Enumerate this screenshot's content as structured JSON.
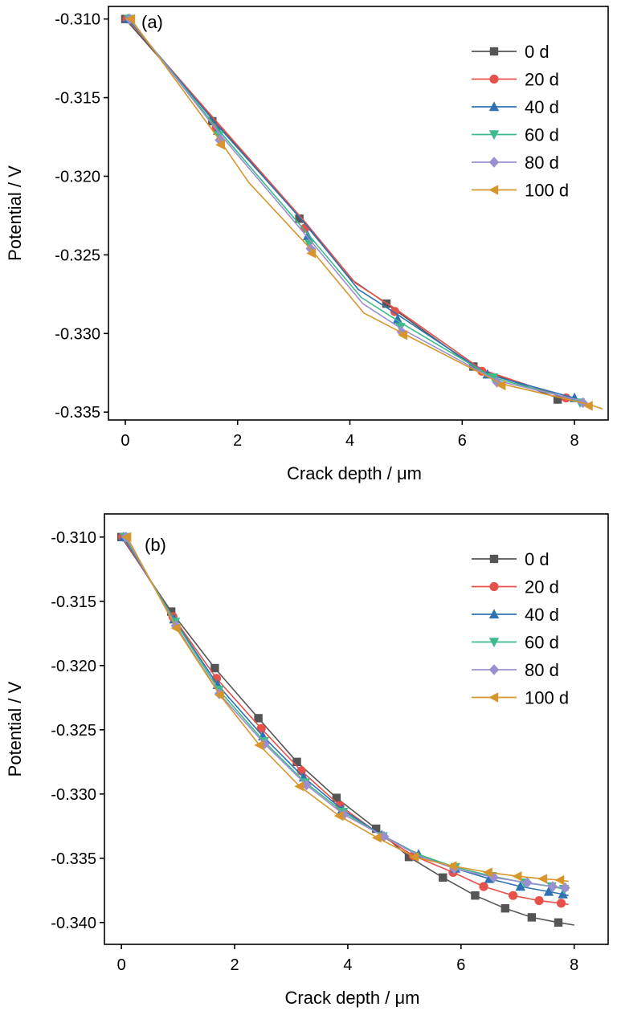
{
  "colors": {
    "0 d": "#555555",
    "20 d": "#e8514a",
    "40 d": "#2f72b3",
    "60 d": "#3dbb8a",
    "80 d": "#9b8fcf",
    "100 d": "#d8952b"
  },
  "markers": {
    "0 d": "square",
    "20 d": "circle",
    "40 d": "triangle-up",
    "60 d": "triangle-down",
    "80 d": "diamond",
    "100 d": "triangle-left"
  },
  "chart_data": [
    {
      "type": "line",
      "panel_label": "(a)",
      "xlabel": "Crack depth / μm",
      "ylabel": "Potential / V",
      "xlim": [
        -0.3,
        8.6
      ],
      "ylim": [
        -0.3355,
        -0.3092
      ],
      "xticks": [
        0,
        2,
        4,
        6,
        8
      ],
      "xtick_labels": [
        "0",
        "2",
        "4",
        "6",
        "8"
      ],
      "yticks": [
        -0.31,
        -0.315,
        -0.32,
        -0.325,
        -0.33,
        -0.335
      ],
      "ytick_labels": [
        "-0.310",
        "-0.315",
        "-0.320",
        "-0.325",
        "-0.330",
        "-0.335"
      ],
      "legend_position": "top-right",
      "grid": false,
      "series": [
        {
          "name": "0 d",
          "line": {
            "x": [
              0,
              1.55,
              3.1,
              4.0,
              4.65,
              6.2,
              7.7,
              8.05
            ],
            "y": [
              -0.31,
              -0.3163,
              -0.3226,
              -0.3265,
              -0.3281,
              -0.3321,
              -0.3341,
              -0.3343
            ]
          },
          "markers": {
            "x": [
              0,
              1.55,
              3.1,
              4.65,
              6.2,
              7.7
            ],
            "y": [
              -0.31,
              -0.3165,
              -0.3227,
              -0.3281,
              -0.3321,
              -0.3342
            ]
          }
        },
        {
          "name": "20 d",
          "line": {
            "x": [
              0.03,
              1.62,
              3.2,
              4.1,
              4.8,
              6.35,
              7.85,
              8.05
            ],
            "y": [
              -0.31,
              -0.3165,
              -0.3229,
              -0.3268,
              -0.3284,
              -0.3323,
              -0.3341,
              -0.3342
            ]
          },
          "markers": {
            "x": [
              0.03,
              1.62,
              3.2,
              4.8,
              6.35,
              7.85
            ],
            "y": [
              -0.31,
              -0.3169,
              -0.3233,
              -0.3286,
              -0.3324,
              -0.3341
            ]
          }
        },
        {
          "name": "40 d",
          "line": {
            "x": [
              0.05,
              1.65,
              3.25,
              4.15,
              4.85,
              6.45,
              8.0,
              8.1
            ],
            "y": [
              -0.31,
              -0.3168,
              -0.3232,
              -0.3272,
              -0.3288,
              -0.3326,
              -0.3341,
              -0.3344
            ]
          },
          "markers": {
            "x": [
              0.05,
              1.65,
              3.25,
              4.85,
              6.45,
              8.0
            ],
            "y": [
              -0.31,
              -0.3171,
              -0.3238,
              -0.3291,
              -0.3326,
              -0.3341
            ]
          }
        },
        {
          "name": "60 d",
          "line": {
            "x": [
              0.07,
              1.67,
              3.28,
              4.2,
              4.9,
              6.55,
              8.1,
              8.2
            ],
            "y": [
              -0.31,
              -0.3171,
              -0.3238,
              -0.3277,
              -0.3293,
              -0.3328,
              -0.3343,
              -0.3345
            ]
          },
          "markers": {
            "x": [
              0.07,
              1.67,
              3.28,
              4.9,
              6.55,
              8.1
            ],
            "y": [
              -0.31,
              -0.3174,
              -0.3243,
              -0.3296,
              -0.3328,
              -0.3344
            ]
          }
        },
        {
          "name": "80 d",
          "line": {
            "x": [
              0.08,
              1.68,
              3.3,
              4.23,
              4.92,
              6.62,
              8.15,
              8.25
            ],
            "y": [
              -0.31,
              -0.3173,
              -0.3241,
              -0.3281,
              -0.3297,
              -0.333,
              -0.3343,
              -0.3345
            ]
          },
          "markers": {
            "x": [
              0.08,
              1.68,
              3.3,
              4.92,
              6.62,
              8.15
            ],
            "y": [
              -0.31,
              -0.3177,
              -0.3246,
              -0.3299,
              -0.3331,
              -0.3344
            ]
          }
        },
        {
          "name": "100 d",
          "line": {
            "x": [
              0.1,
              1.7,
              2.2,
              3.32,
              4.25,
              4.95,
              6.7,
              8.25,
              8.5
            ],
            "y": [
              -0.31,
              -0.3178,
              -0.3204,
              -0.3247,
              -0.3287,
              -0.33,
              -0.3332,
              -0.3345,
              -0.3348
            ]
          },
          "markers": {
            "x": [
              0.1,
              1.7,
              3.32,
              4.95,
              6.7,
              8.25
            ],
            "y": [
              -0.31,
              -0.318,
              -0.3249,
              -0.3301,
              -0.3333,
              -0.3346
            ]
          }
        }
      ]
    },
    {
      "type": "line",
      "panel_label": "(b)",
      "xlabel": "Crack depth / μm",
      "ylabel": "Potential / V",
      "xlim": [
        -0.3,
        8.6
      ],
      "ylim": [
        -0.3417,
        -0.3082
      ],
      "xticks": [
        0,
        2,
        4,
        6,
        8
      ],
      "xtick_labels": [
        "0",
        "2",
        "4",
        "6",
        "8"
      ],
      "yticks": [
        -0.31,
        -0.315,
        -0.32,
        -0.325,
        -0.33,
        -0.335,
        -0.34
      ],
      "ytick_labels": [
        "-0.310",
        "-0.315",
        "-0.320",
        "-0.325",
        "-0.330",
        "-0.335",
        "-0.340"
      ],
      "legend_position": "top-right",
      "grid": false,
      "series": [
        {
          "name": "0 d",
          "line": {
            "x": [
              0,
              0.88,
              1.65,
              2.42,
              3.1,
              3.8,
              4.5,
              5.08,
              5.68,
              6.25,
              6.78,
              7.25,
              7.72,
              8.0
            ],
            "y": [
              -0.31,
              -0.3158,
              -0.3202,
              -0.3241,
              -0.3275,
              -0.3303,
              -0.3327,
              -0.3349,
              -0.3365,
              -0.3379,
              -0.3389,
              -0.3396,
              -0.34,
              -0.3402
            ]
          },
          "markers": {
            "x": [
              0,
              0.88,
              1.65,
              2.42,
              3.1,
              3.8,
              4.5,
              5.08,
              5.68,
              6.25,
              6.78,
              7.25,
              7.72
            ],
            "y": [
              -0.31,
              -0.3158,
              -0.3202,
              -0.3241,
              -0.3275,
              -0.3303,
              -0.3327,
              -0.3349,
              -0.3365,
              -0.3379,
              -0.3389,
              -0.3396,
              -0.34
            ]
          }
        },
        {
          "name": "20 d",
          "line": {
            "x": [
              0.02,
              0.91,
              1.68,
              2.47,
              3.18,
              3.86,
              4.55,
              5.16,
              5.86,
              6.4,
              6.92,
              7.38,
              7.77,
              7.9
            ],
            "y": [
              -0.31,
              -0.3162,
              -0.321,
              -0.3249,
              -0.3282,
              -0.3309,
              -0.3331,
              -0.3348,
              -0.3361,
              -0.3372,
              -0.3379,
              -0.3383,
              -0.3385,
              -0.3386
            ]
          },
          "markers": {
            "x": [
              0.02,
              0.91,
              1.68,
              2.47,
              3.18,
              3.86,
              5.16,
              5.86,
              6.4,
              6.92,
              7.38,
              7.77
            ],
            "y": [
              -0.31,
              -0.3162,
              -0.321,
              -0.3249,
              -0.3282,
              -0.3309,
              -0.3348,
              -0.3361,
              -0.3372,
              -0.3379,
              -0.3383,
              -0.3385
            ]
          }
        },
        {
          "name": "40 d",
          "line": {
            "x": [
              0.04,
              0.93,
              1.7,
              2.5,
              3.22,
              3.9,
              4.6,
              5.25,
              5.9,
              6.5,
              7.05,
              7.55,
              7.8,
              7.9
            ],
            "y": [
              -0.31,
              -0.3164,
              -0.3215,
              -0.3255,
              -0.3287,
              -0.3312,
              -0.3332,
              -0.3347,
              -0.3358,
              -0.3366,
              -0.3372,
              -0.3376,
              -0.3378,
              -0.3379
            ]
          },
          "markers": {
            "x": [
              0.04,
              0.93,
              1.7,
              2.5,
              3.22,
              3.9,
              4.6,
              5.25,
              5.9,
              6.5,
              7.05,
              7.55,
              7.8
            ],
            "y": [
              -0.31,
              -0.3164,
              -0.3215,
              -0.3255,
              -0.3287,
              -0.3312,
              -0.3332,
              -0.3347,
              -0.3358,
              -0.3366,
              -0.3372,
              -0.3376,
              -0.3378
            ]
          }
        },
        {
          "name": "60 d",
          "line": {
            "x": [
              0.06,
              0.95,
              1.72,
              2.52,
              3.25,
              3.92,
              4.62,
              5.25,
              5.9,
              6.55,
              7.12,
              7.6,
              7.82,
              7.9
            ],
            "y": [
              -0.31,
              -0.3166,
              -0.3219,
              -0.3259,
              -0.3291,
              -0.3314,
              -0.3333,
              -0.3347,
              -0.3357,
              -0.3364,
              -0.3369,
              -0.3372,
              -0.3374,
              -0.3375
            ]
          },
          "markers": {
            "x": [
              0.06,
              0.95,
              1.72,
              2.52,
              3.25,
              3.92,
              4.62,
              5.9,
              6.55,
              7.12,
              7.6,
              7.82
            ],
            "y": [
              -0.31,
              -0.3166,
              -0.3219,
              -0.3259,
              -0.3291,
              -0.3314,
              -0.3333,
              -0.3357,
              -0.3364,
              -0.3369,
              -0.3372,
              -0.3374
            ]
          }
        },
        {
          "name": "80 d",
          "line": {
            "x": [
              0.08,
              0.96,
              1.73,
              2.53,
              3.27,
              3.93,
              4.64,
              5.25,
              5.88,
              6.58,
              7.17,
              7.62,
              7.84,
              7.9
            ],
            "y": [
              -0.31,
              -0.3169,
              -0.3222,
              -0.3261,
              -0.3293,
              -0.3316,
              -0.3333,
              -0.3348,
              -0.3358,
              -0.3365,
              -0.3369,
              -0.3372,
              -0.3373,
              -0.3373
            ]
          },
          "markers": {
            "x": [
              0.08,
              0.96,
              1.73,
              2.53,
              3.27,
              3.93,
              4.64,
              5.88,
              6.58,
              7.17,
              7.62,
              7.84
            ],
            "y": [
              -0.31,
              -0.3169,
              -0.3222,
              -0.3261,
              -0.3293,
              -0.3316,
              -0.3333,
              -0.3358,
              -0.3365,
              -0.3369,
              -0.3372,
              -0.3373
            ]
          }
        },
        {
          "name": "100 d",
          "line": {
            "x": [
              0.1,
              0.97,
              1.74,
              2.44,
              3.15,
              3.85,
              4.52,
              5.18,
              5.85,
              6.48,
              7.0,
              7.45,
              7.75,
              7.9
            ],
            "y": [
              -0.31,
              -0.3171,
              -0.3223,
              -0.3262,
              -0.3294,
              -0.3317,
              -0.3334,
              -0.3349,
              -0.3356,
              -0.3361,
              -0.3364,
              -0.3366,
              -0.3367,
              -0.3368
            ]
          },
          "markers": {
            "x": [
              0.1,
              0.97,
              1.74,
              2.44,
              3.15,
              3.85,
              4.52,
              5.18,
              5.85,
              6.48,
              7.0,
              7.45,
              7.75
            ],
            "y": [
              -0.31,
              -0.3171,
              -0.3223,
              -0.3262,
              -0.3294,
              -0.3317,
              -0.3334,
              -0.3349,
              -0.3356,
              -0.3361,
              -0.3364,
              -0.3366,
              -0.3367
            ]
          }
        }
      ]
    }
  ]
}
